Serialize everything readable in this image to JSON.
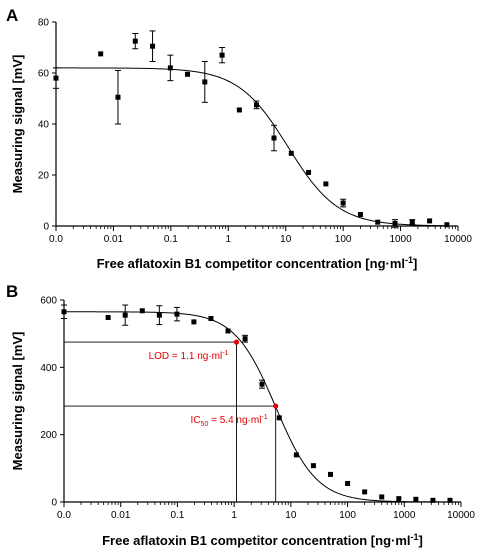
{
  "chart_data": [
    {
      "type": "scatter",
      "panel_label": "A",
      "xlabel": "Free aflatoxin B1 competitor concentration [ng·ml",
      "xlabel_sup": "-1",
      "xlabel_end": "]",
      "ylabel": "Measuring signal [mV]",
      "x_scale": "log",
      "xlim": [
        0.001,
        10000
      ],
      "ylim": [
        0,
        80
      ],
      "x_ticks": [
        {
          "v": 0.001,
          "label": "0.0"
        },
        {
          "v": 0.01,
          "label": "0.01"
        },
        {
          "v": 0.1,
          "label": "0.1"
        },
        {
          "v": 1,
          "label": "1"
        },
        {
          "v": 10,
          "label": "10"
        },
        {
          "v": 100,
          "label": "100"
        },
        {
          "v": 1000,
          "label": "1000"
        },
        {
          "v": 10000,
          "label": "10000"
        }
      ],
      "y_ticks": [
        0,
        20,
        40,
        60,
        80
      ],
      "points": [
        {
          "x": 0.001,
          "y": 58,
          "err": 4
        },
        {
          "x": 0.006,
          "y": 67.5
        },
        {
          "x": 0.012,
          "y": 50.5,
          "err": 10.5
        },
        {
          "x": 0.024,
          "y": 72.5,
          "err": 3
        },
        {
          "x": 0.048,
          "y": 70.5,
          "err": 6
        },
        {
          "x": 0.098,
          "y": 62,
          "err": 5
        },
        {
          "x": 0.195,
          "y": 59.5
        },
        {
          "x": 0.39,
          "y": 56.5,
          "err": 8
        },
        {
          "x": 0.78,
          "y": 67,
          "err": 3
        },
        {
          "x": 1.56,
          "y": 45.5
        },
        {
          "x": 3.1,
          "y": 47.5,
          "err": 1.5
        },
        {
          "x": 6.25,
          "y": 34.5,
          "err": 5
        },
        {
          "x": 12.5,
          "y": 28.5
        },
        {
          "x": 25,
          "y": 21
        },
        {
          "x": 50,
          "y": 16.5
        },
        {
          "x": 100,
          "y": 9,
          "err": 1.5
        },
        {
          "x": 200,
          "y": 4.5
        },
        {
          "x": 400,
          "y": 1.5
        },
        {
          "x": 800,
          "y": 1,
          "err": 1.5
        },
        {
          "x": 1600,
          "y": 1.5,
          "err": 1
        },
        {
          "x": 3200,
          "y": 2
        },
        {
          "x": 6400,
          "y": 0.5
        }
      ],
      "fit": {
        "top": 62,
        "bottom": 0,
        "ic50": 11,
        "hill": 1.0,
        "x_from": 0.001,
        "x_to": 6000
      }
    },
    {
      "type": "scatter",
      "panel_label": "B",
      "xlabel": "Free aflatoxin B1 competitor concentration [ng·ml",
      "xlabel_sup": "-1",
      "xlabel_end": "]",
      "ylabel": "Measuring signal [mV]",
      "x_scale": "log",
      "xlim": [
        0.001,
        10000
      ],
      "ylim": [
        0,
        600
      ],
      "x_ticks": [
        {
          "v": 0.001,
          "label": "0.0"
        },
        {
          "v": 0.01,
          "label": "0.01"
        },
        {
          "v": 0.1,
          "label": "0.1"
        },
        {
          "v": 1,
          "label": "1"
        },
        {
          "v": 10,
          "label": "10"
        },
        {
          "v": 100,
          "label": "100"
        },
        {
          "v": 1000,
          "label": "1000"
        },
        {
          "v": 10000,
          "label": "10000"
        }
      ],
      "y_ticks": [
        0,
        200,
        400,
        600
      ],
      "points": [
        {
          "x": 0.001,
          "y": 565,
          "err": 20
        },
        {
          "x": 0.006,
          "y": 548
        },
        {
          "x": 0.012,
          "y": 555,
          "err": 30
        },
        {
          "x": 0.024,
          "y": 568
        },
        {
          "x": 0.048,
          "y": 555,
          "err": 28
        },
        {
          "x": 0.098,
          "y": 558,
          "err": 20
        },
        {
          "x": 0.195,
          "y": 535
        },
        {
          "x": 0.39,
          "y": 545
        },
        {
          "x": 0.78,
          "y": 508
        },
        {
          "x": 1.56,
          "y": 485,
          "err": 10
        },
        {
          "x": 3.1,
          "y": 350,
          "err": 12
        },
        {
          "x": 6.25,
          "y": 250
        },
        {
          "x": 12.5,
          "y": 140
        },
        {
          "x": 25,
          "y": 108
        },
        {
          "x": 50,
          "y": 82
        },
        {
          "x": 100,
          "y": 55
        },
        {
          "x": 200,
          "y": 30
        },
        {
          "x": 400,
          "y": 15
        },
        {
          "x": 800,
          "y": 10
        },
        {
          "x": 1600,
          "y": 8
        },
        {
          "x": 3200,
          "y": 5
        },
        {
          "x": 6400,
          "y": 5
        }
      ],
      "fit": {
        "top": 565,
        "bottom": 0,
        "ic50": 5.4,
        "hill": 1.2,
        "x_from": 0.001,
        "x_to": 6000
      },
      "annotations": [
        {
          "x": 1.1,
          "y": 475,
          "label": "LOD = 1.1 ng·ml",
          "sup": "-1",
          "label_pos": "left"
        },
        {
          "x": 5.4,
          "y": 285,
          "label_main": "IC",
          "sub": "50",
          "label_rest": " = 5.4 ng·ml",
          "sup": "-1",
          "label_pos": "left"
        }
      ],
      "annotation_color": "#e00000"
    }
  ]
}
